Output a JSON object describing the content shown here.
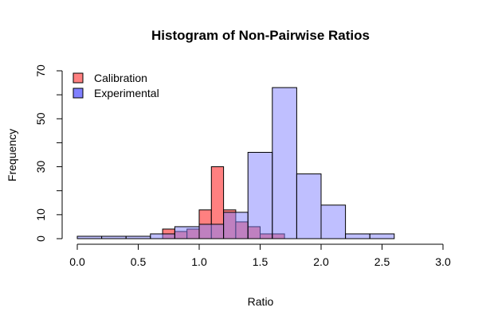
{
  "chart_data": {
    "type": "bar",
    "title": "Histogram of Non-Pairwise Ratios",
    "xlabel": "Ratio",
    "ylabel": "Frequency",
    "xlim": [
      0,
      3
    ],
    "ylim": [
      0,
      70
    ],
    "x_ticks": [
      "0.0",
      "0.5",
      "1.0",
      "1.5",
      "2.0",
      "2.5",
      "3.0"
    ],
    "y_ticks": [
      "0",
      "10",
      "30",
      "50",
      "70"
    ],
    "grid": false,
    "legend_position": "top-left",
    "series": [
      {
        "name": "Calibration",
        "color": "#ff8080",
        "bins": [
          {
            "x0": 0.7,
            "x1": 0.8,
            "count": 4
          },
          {
            "x0": 0.8,
            "x1": 0.9,
            "count": 3
          },
          {
            "x0": 0.9,
            "x1": 1.0,
            "count": 4
          },
          {
            "x0": 1.0,
            "x1": 1.1,
            "count": 12
          },
          {
            "x0": 1.1,
            "x1": 1.2,
            "count": 30
          },
          {
            "x0": 1.2,
            "x1": 1.3,
            "count": 12
          },
          {
            "x0": 1.3,
            "x1": 1.4,
            "count": 7
          },
          {
            "x0": 1.4,
            "x1": 1.5,
            "count": 5
          },
          {
            "x0": 1.5,
            "x1": 1.6,
            "count": 2
          },
          {
            "x0": 1.6,
            "x1": 1.7,
            "count": 2
          }
        ]
      },
      {
        "name": "Experimental",
        "color": "#8080ff",
        "bins": [
          {
            "x0": 0.0,
            "x1": 0.2,
            "count": 1
          },
          {
            "x0": 0.2,
            "x1": 0.4,
            "count": 1
          },
          {
            "x0": 0.4,
            "x1": 0.6,
            "count": 1
          },
          {
            "x0": 0.6,
            "x1": 0.8,
            "count": 2
          },
          {
            "x0": 0.8,
            "x1": 1.0,
            "count": 5
          },
          {
            "x0": 1.0,
            "x1": 1.2,
            "count": 6
          },
          {
            "x0": 1.2,
            "x1": 1.4,
            "count": 11
          },
          {
            "x0": 1.4,
            "x1": 1.6,
            "count": 36
          },
          {
            "x0": 1.6,
            "x1": 1.8,
            "count": 63
          },
          {
            "x0": 1.8,
            "x1": 2.0,
            "count": 27
          },
          {
            "x0": 2.0,
            "x1": 2.2,
            "count": 14
          },
          {
            "x0": 2.2,
            "x1": 2.4,
            "count": 2
          },
          {
            "x0": 2.4,
            "x1": 2.6,
            "count": 2
          }
        ]
      }
    ]
  }
}
